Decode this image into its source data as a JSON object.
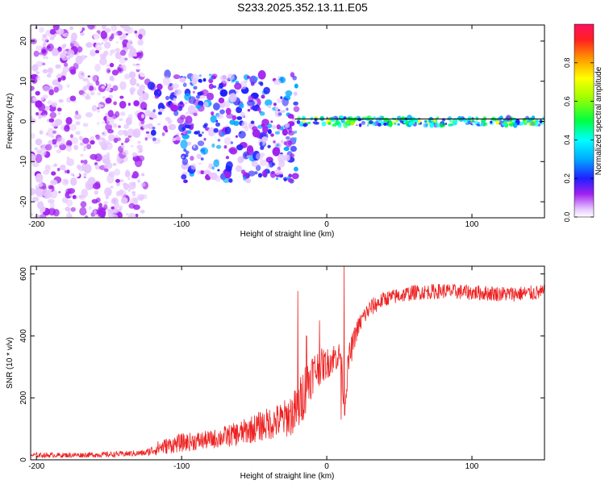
{
  "title": "S233.2025.352.13.11.E05",
  "colors": {
    "snr_line": "#ee2222",
    "scatter_main": "#6a1de0",
    "scatter_light": "#c9a8f5",
    "trace": "#000000"
  },
  "chart_data": [
    {
      "type": "heatmap",
      "name": "spectrogram",
      "xlabel": "Height of straight line (km)",
      "ylabel": "Frequency (Hz)",
      "xlim": [
        -204,
        150
      ],
      "ylim": [
        -24,
        24
      ],
      "xticks": [
        -200,
        -100,
        0,
        100
      ],
      "xtick_labels": [
        "-200",
        "-100",
        "0",
        "100"
      ],
      "yticks": [
        -20,
        -10,
        0,
        10,
        20
      ],
      "ytick_labels": [
        "-20",
        "-10",
        "0",
        "10",
        "20"
      ],
      "colorbar": {
        "label": "Normalized spectral amplitude",
        "ticks": [
          0.0,
          0.2,
          0.4,
          0.6,
          0.8
        ],
        "tick_labels": [
          "0.0",
          "0.2",
          "0.4",
          "0.6",
          "0.8"
        ],
        "range": [
          0,
          1
        ]
      },
      "regions": [
        {
          "x_range": [
            -204,
            -125
          ],
          "y_range": [
            -24,
            24
          ],
          "description_level": "dense noise",
          "amplitude": 0.1
        },
        {
          "x_range": [
            -125,
            -100
          ],
          "y_range": [
            -5,
            12
          ],
          "amplitude": 0.15
        },
        {
          "x_range": [
            -100,
            -20
          ],
          "y_range": [
            -15,
            12
          ],
          "amplitude": 0.2
        },
        {
          "x_range": [
            -20,
            150
          ],
          "y_range": [
            -1,
            1
          ],
          "amplitude": 0.7
        }
      ],
      "center_trace": {
        "y": 0.6,
        "x_range": [
          -22,
          150
        ]
      }
    },
    {
      "type": "line",
      "name": "snr",
      "xlabel": "Height of straight line (km)",
      "ylabel": "SNR (10 * v/v)",
      "xlim": [
        -204,
        150
      ],
      "ylim": [
        0,
        625
      ],
      "xticks": [
        -200,
        -100,
        0,
        100
      ],
      "xtick_labels": [
        "-200",
        "-100",
        "0",
        "100"
      ],
      "yticks": [
        0,
        200,
        400,
        600
      ],
      "ytick_labels": [
        "0",
        "200",
        "400",
        "600"
      ],
      "series": [
        {
          "name": "SNR",
          "x": [
            -204,
            -180,
            -150,
            -125,
            -115,
            -100,
            -80,
            -60,
            -45,
            -30,
            -20,
            -15,
            -10,
            -5,
            0,
            5,
            10,
            12,
            15,
            20,
            25,
            30,
            40,
            60,
            80,
            100,
            125,
            150
          ],
          "mean": [
            15,
            15,
            17,
            22,
            40,
            55,
            65,
            85,
            110,
            130,
            160,
            230,
            280,
            300,
            310,
            330,
            340,
            140,
            320,
            410,
            460,
            490,
            520,
            540,
            545,
            540,
            535,
            540
          ],
          "noise": [
            8,
            8,
            9,
            10,
            25,
            30,
            30,
            40,
            50,
            60,
            80,
            90,
            70,
            60,
            50,
            50,
            40,
            20,
            50,
            35,
            30,
            30,
            25,
            25,
            25,
            25,
            25,
            25
          ]
        }
      ],
      "spikes": [
        {
          "x": -20,
          "y": 545
        },
        {
          "x": -14,
          "y": 400
        },
        {
          "x": -5,
          "y": 450
        },
        {
          "x": 12,
          "y": 625
        },
        {
          "x": 10,
          "y": 130
        }
      ]
    }
  ]
}
